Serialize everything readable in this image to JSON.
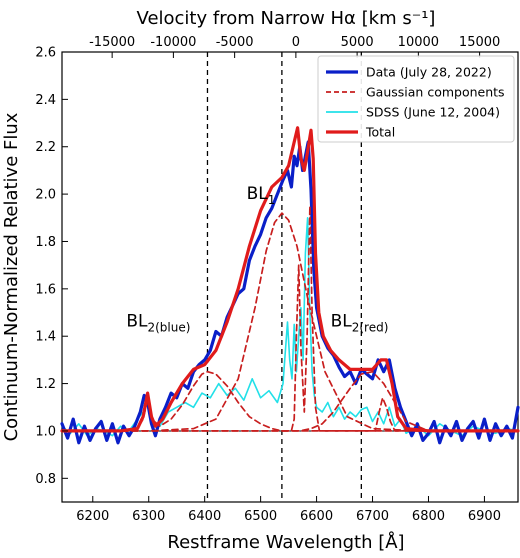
{
  "chart_data": {
    "type": "line",
    "title": "",
    "xlabel": "Restframe Wavelength [Å]",
    "ylabel": "Continuum-Normalized  Relative Flux",
    "top_xlabel": "Velocity from Narrow Hα [km s⁻¹]",
    "xlim": [
      6145,
      6960
    ],
    "ylim": [
      0.7,
      2.6
    ],
    "x_ticks": [
      6200,
      6300,
      6400,
      6500,
      6600,
      6700,
      6800,
      6900
    ],
    "y_ticks": [
      0.8,
      1.0,
      1.2,
      1.4,
      1.6,
      1.8,
      2.0,
      2.2,
      2.4,
      2.6
    ],
    "top_ticks": [
      -15000,
      -10000,
      -5000,
      0,
      5000,
      10000,
      15000
    ],
    "top_tick_labels": [
      "-15000",
      "-10000",
      "-5000",
      "0",
      "5000",
      "10000",
      "15000"
    ],
    "reference_wavelength": 6563,
    "vlines": [
      6405,
      6538,
      6680
    ],
    "legend": {
      "location": "top-right",
      "entries": [
        {
          "label": "Data (July 28, 2022)",
          "color": "#0a1fc8",
          "style": "solid"
        },
        {
          "label": "Gaussian components",
          "color": "#c81e1e",
          "style": "dashed"
        },
        {
          "label": "SDSS (June 12, 2004)",
          "color": "#22e0e8",
          "style": "solid"
        },
        {
          "label": "Total",
          "color": "#e01b1b",
          "style": "solid"
        }
      ]
    },
    "annotations": [
      {
        "main": "BL",
        "sub": "1",
        "x": 6475,
        "y": 1.98
      },
      {
        "main": "BL",
        "sub": "2(blue)",
        "x": 6260,
        "y": 1.44
      },
      {
        "main": "BL",
        "sub": "2(red)",
        "x": 6625,
        "y": 1.44
      }
    ],
    "series": [
      {
        "name": "SDSS (June 12, 2004)",
        "color": "#22e0e8",
        "x": [
          6145,
          6160,
          6175,
          6190,
          6205,
          6220,
          6235,
          6250,
          6265,
          6280,
          6290,
          6298,
          6305,
          6320,
          6335,
          6350,
          6365,
          6380,
          6395,
          6410,
          6425,
          6440,
          6455,
          6470,
          6485,
          6500,
          6515,
          6530,
          6540,
          6548,
          6552,
          6556,
          6560,
          6564,
          6568,
          6572,
          6576,
          6580,
          6584,
          6588,
          6592,
          6596,
          6600,
          6610,
          6620,
          6630,
          6640,
          6650,
          6660,
          6670,
          6680,
          6690,
          6700,
          6710,
          6720,
          6730,
          6740,
          6750,
          6760,
          6780,
          6800,
          6820,
          6840,
          6860,
          6880,
          6900,
          6920,
          6940,
          6960
        ],
        "y": [
          1.02,
          0.99,
          1.03,
          0.98,
          1.01,
          1.0,
          0.98,
          1.02,
          1.0,
          1.05,
          1.08,
          1.14,
          1.05,
          1.02,
          1.08,
          1.1,
          1.12,
          1.1,
          1.16,
          1.14,
          1.2,
          1.15,
          1.18,
          1.13,
          1.22,
          1.14,
          1.17,
          1.12,
          1.2,
          1.46,
          1.3,
          1.22,
          1.45,
          1.25,
          1.4,
          1.52,
          1.3,
          1.75,
          1.9,
          1.5,
          1.25,
          1.15,
          1.1,
          1.08,
          1.12,
          1.06,
          1.1,
          1.05,
          1.08,
          1.06,
          1.09,
          1.1,
          1.04,
          1.08,
          1.03,
          1.1,
          1.02,
          1.05,
          0.99,
          1.02,
          0.98,
          1.03,
          1.0,
          0.98,
          1.02,
          1.0,
          0.99,
          1.01,
          1.0
        ]
      },
      {
        "name": "Data (July 28, 2022)",
        "color": "#0a1fc8",
        "x": [
          6145,
          6155,
          6165,
          6175,
          6185,
          6195,
          6205,
          6215,
          6225,
          6235,
          6245,
          6255,
          6265,
          6275,
          6285,
          6292,
          6298,
          6305,
          6312,
          6320,
          6330,
          6340,
          6350,
          6360,
          6370,
          6380,
          6390,
          6400,
          6410,
          6420,
          6430,
          6440,
          6450,
          6460,
          6470,
          6480,
          6490,
          6500,
          6510,
          6520,
          6530,
          6540,
          6548,
          6555,
          6560,
          6565,
          6570,
          6575,
          6580,
          6585,
          6590,
          6595,
          6600,
          6605,
          6610,
          6620,
          6630,
          6640,
          6650,
          6660,
          6670,
          6680,
          6690,
          6700,
          6710,
          6720,
          6730,
          6740,
          6750,
          6760,
          6770,
          6780,
          6790,
          6800,
          6810,
          6820,
          6830,
          6840,
          6850,
          6860,
          6870,
          6880,
          6890,
          6900,
          6910,
          6920,
          6930,
          6940,
          6950,
          6960
        ],
        "y": [
          1.03,
          0.97,
          1.05,
          0.95,
          1.02,
          0.96,
          1.01,
          1.04,
          0.96,
          1.03,
          0.95,
          1.02,
          0.98,
          1.02,
          1.08,
          1.15,
          1.12,
          1.03,
          0.98,
          1.05,
          1.1,
          1.16,
          1.14,
          1.2,
          1.18,
          1.25,
          1.28,
          1.3,
          1.34,
          1.42,
          1.4,
          1.48,
          1.53,
          1.58,
          1.6,
          1.72,
          1.78,
          1.83,
          1.9,
          1.94,
          2.0,
          2.06,
          2.1,
          2.03,
          2.16,
          2.12,
          2.2,
          2.1,
          2.16,
          2.22,
          2.02,
          1.68,
          1.52,
          1.46,
          1.4,
          1.35,
          1.32,
          1.27,
          1.23,
          1.25,
          1.2,
          1.26,
          1.24,
          1.22,
          1.3,
          1.25,
          1.3,
          1.18,
          1.1,
          1.04,
          0.98,
          1.03,
          0.96,
          0.99,
          1.04,
          0.95,
          1.02,
          0.98,
          1.04,
          0.96,
          1.01,
          1.04,
          0.97,
          1.05,
          0.96,
          1.03,
          0.98,
          1.02,
          0.97,
          1.1
        ]
      },
      {
        "name": "Gaussian components",
        "color": "#c81e1e",
        "x": [
          6145,
          6200,
          6250,
          6280,
          6290,
          6298,
          6305,
          6320,
          6340,
          6360,
          6380,
          6395,
          6405,
          6420,
          6440,
          6460,
          6480,
          6500,
          6520,
          6538,
          6550,
          6570,
          6590,
          6610,
          6630,
          6660,
          6680,
          6700,
          6720,
          6740,
          6760,
          6800,
          6900,
          6960
        ],
        "y": [
          1.0,
          1.0,
          1.0,
          1.01,
          1.05,
          1.13,
          1.05,
          1.02,
          1.05,
          1.11,
          1.19,
          1.24,
          1.25,
          1.24,
          1.19,
          1.12,
          1.06,
          1.03,
          1.01,
          1.0,
          1.0,
          1.0,
          1.01,
          1.03,
          1.08,
          1.18,
          1.24,
          1.25,
          1.2,
          1.12,
          1.04,
          1.0,
          1.0,
          1.0
        ]
      },
      {
        "name": "Gaussian components",
        "color": "#c81e1e",
        "x": [
          6145,
          6300,
          6380,
          6420,
          6460,
          6490,
          6510,
          6525,
          6538,
          6550,
          6565,
          6585,
          6615,
          6655,
          6700,
          6780,
          6960
        ],
        "y": [
          1.0,
          1.0,
          1.01,
          1.05,
          1.22,
          1.52,
          1.76,
          1.88,
          1.92,
          1.89,
          1.78,
          1.55,
          1.25,
          1.06,
          1.01,
          1.0,
          1.0
        ]
      },
      {
        "name": "Gaussian components",
        "color": "#c81e1e",
        "x": [
          6145,
          6555,
          6560,
          6564,
          6568,
          6572,
          6578,
          6583,
          6588,
          6592,
          6598,
          6605,
          6960
        ],
        "y": [
          1.0,
          1.0,
          1.05,
          1.4,
          1.7,
          1.35,
          1.08,
          1.4,
          1.95,
          1.5,
          1.1,
          1.0,
          1.0
        ]
      },
      {
        "name": "Gaussian components",
        "color": "#c81e1e",
        "x": [
          6145,
          6705,
          6712,
          6718,
          6725,
          6732,
          6740,
          6960
        ],
        "y": [
          1.0,
          1.0,
          1.08,
          1.14,
          1.1,
          1.04,
          1.0,
          1.0
        ]
      },
      {
        "name": "Total",
        "color": "#e01b1b",
        "x": [
          6145,
          6250,
          6280,
          6290,
          6298,
          6305,
          6312,
          6325,
          6340,
          6360,
          6380,
          6400,
          6420,
          6440,
          6460,
          6480,
          6500,
          6520,
          6538,
          6550,
          6560,
          6566,
          6572,
          6578,
          6584,
          6590,
          6594,
          6598,
          6604,
          6612,
          6625,
          6640,
          6660,
          6680,
          6700,
          6715,
          6725,
          6735,
          6745,
          6760,
          6800,
          6960
        ],
        "y": [
          1.0,
          1.0,
          1.01,
          1.06,
          1.16,
          1.06,
          1.02,
          1.05,
          1.12,
          1.2,
          1.26,
          1.28,
          1.34,
          1.46,
          1.6,
          1.78,
          1.93,
          2.03,
          2.07,
          2.12,
          2.22,
          2.28,
          2.15,
          2.1,
          2.18,
          2.27,
          2.15,
          1.75,
          1.5,
          1.4,
          1.34,
          1.3,
          1.26,
          1.26,
          1.26,
          1.3,
          1.3,
          1.2,
          1.06,
          1.01,
          1.0,
          1.0
        ]
      }
    ]
  }
}
